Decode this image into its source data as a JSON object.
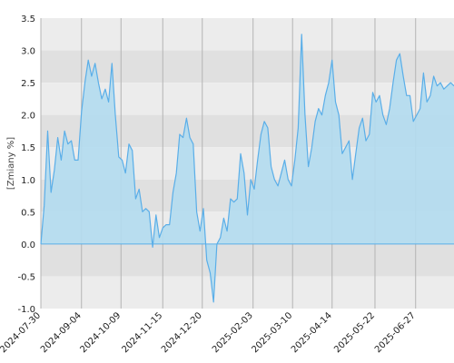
{
  "chart_data": {
    "type": "area",
    "title": "",
    "xlabel": "",
    "ylabel": "[Zmiany %]",
    "ylim": [
      -1.0,
      3.5
    ],
    "xlim": [
      "2024-07-30",
      "2025-07-31"
    ],
    "grid": true,
    "legend": "none",
    "y_ticks": [
      "-1.0",
      "-0.5",
      "0.0",
      "0.5",
      "1.0",
      "1.5",
      "2.0",
      "2.5",
      "3.0",
      "3.5"
    ],
    "x_ticks": [
      "2024-07-30",
      "2024-09-04",
      "2024-10-09",
      "2024-11-15",
      "2024-12-20",
      "2025-02-03",
      "2025-03-10",
      "2025-04-14",
      "2025-05-22",
      "2025-06-27"
    ],
    "colors": {
      "line": "#5aaee8",
      "fill": "#b3dcef",
      "band_dark": "#e0e0e0",
      "band_light": "#ececec",
      "grid_vertical": "#b4b4b4",
      "axis": "#888888"
    },
    "series": [
      {
        "x": [
          "2024-07-30",
          "2024-08-02",
          "2024-08-05",
          "2024-08-08",
          "2024-08-11",
          "2024-08-14",
          "2024-08-17",
          "2024-08-20",
          "2024-08-23",
          "2024-08-26",
          "2024-08-29",
          "2024-09-01",
          "2024-09-04",
          "2024-09-07",
          "2024-09-10",
          "2024-09-13",
          "2024-09-16",
          "2024-09-19",
          "2024-09-22",
          "2024-09-25",
          "2024-09-28",
          "2024-10-01",
          "2024-10-04",
          "2024-10-07",
          "2024-10-10",
          "2024-10-13",
          "2024-10-16",
          "2024-10-19",
          "2024-10-22",
          "2024-10-25",
          "2024-10-28",
          "2024-10-31",
          "2024-11-03",
          "2024-11-06",
          "2024-11-09",
          "2024-11-12",
          "2024-11-15",
          "2024-11-18",
          "2024-11-21",
          "2024-11-24",
          "2024-11-27",
          "2024-11-30",
          "2024-12-03",
          "2024-12-06",
          "2024-12-09",
          "2024-12-12",
          "2024-12-15",
          "2024-12-18",
          "2024-12-21",
          "2024-12-24",
          "2024-12-27",
          "2024-12-30",
          "2025-01-02",
          "2025-01-05",
          "2025-01-08",
          "2025-01-11",
          "2025-01-14",
          "2025-01-17",
          "2025-01-20",
          "2025-01-23",
          "2025-01-26",
          "2025-01-29",
          "2025-02-01",
          "2025-02-04",
          "2025-02-07",
          "2025-02-10",
          "2025-02-13",
          "2025-02-16",
          "2025-02-19",
          "2025-02-22",
          "2025-02-25",
          "2025-02-28",
          "2025-03-03",
          "2025-03-06",
          "2025-03-09",
          "2025-03-12",
          "2025-03-15",
          "2025-03-18",
          "2025-03-21",
          "2025-03-24",
          "2025-03-27",
          "2025-03-30",
          "2025-04-02",
          "2025-04-05",
          "2025-04-08",
          "2025-04-11",
          "2025-04-14",
          "2025-04-17",
          "2025-04-20",
          "2025-04-23",
          "2025-04-26",
          "2025-04-29",
          "2025-05-02",
          "2025-05-05",
          "2025-05-08",
          "2025-05-11",
          "2025-05-14",
          "2025-05-17",
          "2025-05-20",
          "2025-05-23",
          "2025-05-26",
          "2025-05-29",
          "2025-06-01",
          "2025-06-04",
          "2025-06-07",
          "2025-06-10",
          "2025-06-13",
          "2025-06-16",
          "2025-06-19",
          "2025-06-22",
          "2025-06-25",
          "2025-06-28",
          "2025-07-01",
          "2025-07-04",
          "2025-07-07",
          "2025-07-10",
          "2025-07-13",
          "2025-07-16",
          "2025-07-19",
          "2025-07-22",
          "2025-07-25",
          "2025-07-28",
          "2025-07-31"
        ],
        "y": [
          0.0,
          0.6,
          1.75,
          0.8,
          1.15,
          1.65,
          1.3,
          1.75,
          1.55,
          1.6,
          1.3,
          1.3,
          2.05,
          2.5,
          2.85,
          2.6,
          2.8,
          2.5,
          2.25,
          2.4,
          2.2,
          2.8,
          2.0,
          1.35,
          1.3,
          1.1,
          1.55,
          1.45,
          0.7,
          0.85,
          0.5,
          0.55,
          0.5,
          -0.05,
          0.45,
          0.1,
          0.25,
          0.3,
          0.3,
          0.8,
          1.1,
          1.7,
          1.65,
          1.95,
          1.65,
          1.55,
          0.5,
          0.2,
          0.55,
          -0.25,
          -0.45,
          -0.9,
          0.0,
          0.1,
          0.4,
          0.2,
          0.7,
          0.65,
          0.7,
          1.4,
          1.1,
          0.45,
          1.0,
          0.85,
          1.3,
          1.7,
          1.9,
          1.8,
          1.2,
          1.0,
          0.9,
          1.1,
          1.3,
          1.0,
          0.9,
          1.3,
          1.8,
          3.25,
          2.0,
          1.2,
          1.5,
          1.9,
          2.1,
          2.0,
          2.3,
          2.5,
          2.85,
          2.2,
          2.0,
          1.4,
          1.5,
          1.6,
          1.0,
          1.4,
          1.8,
          1.95,
          1.6,
          1.7,
          2.35,
          2.2,
          2.3,
          2.0,
          1.85,
          2.1,
          2.5,
          2.85,
          2.95,
          2.6,
          2.3,
          2.3,
          1.9,
          2.0,
          2.1,
          2.65,
          2.2,
          2.3,
          2.6,
          2.45,
          2.5,
          2.4,
          2.45,
          2.5,
          2.45
        ]
      }
    ]
  }
}
